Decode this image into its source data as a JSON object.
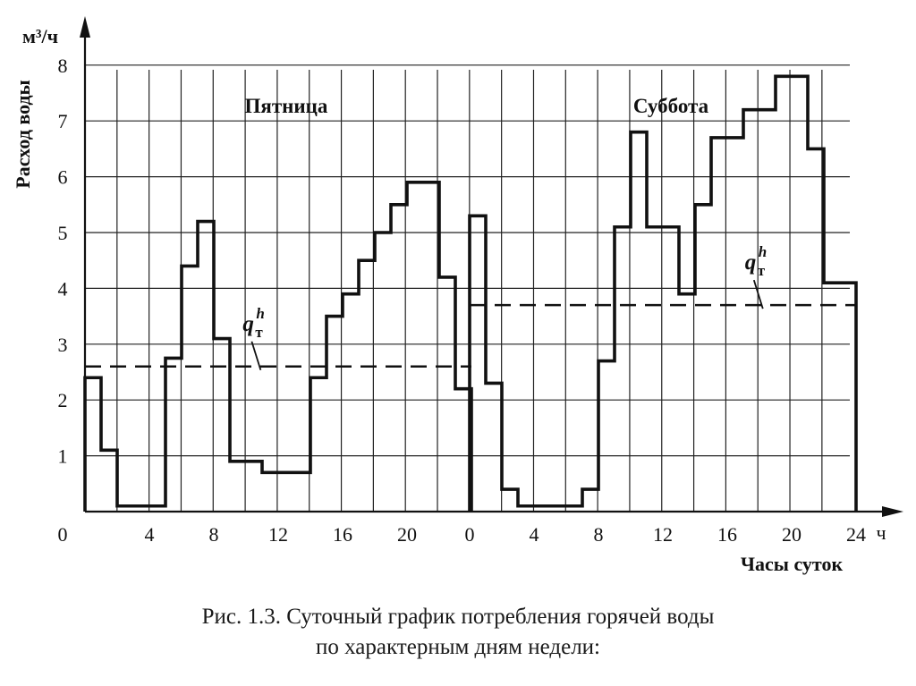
{
  "chart_data": {
    "type": "line",
    "step": true,
    "y_unit": "м³/ч",
    "x_unit": "ч",
    "ylabel": "Расход воды",
    "xlabel": "Часы суток",
    "ylim": [
      0,
      8
    ],
    "y_ticks": [
      "1",
      "2",
      "3",
      "4",
      "5",
      "6",
      "7",
      "8"
    ],
    "origin_label": "0",
    "grid": true,
    "panels": [
      {
        "label": "Пятница",
        "x_ticks": [
          "4",
          "8",
          "12",
          "16",
          "20"
        ],
        "hours": [
          0,
          1,
          2,
          3,
          4,
          5,
          6,
          7,
          8,
          9,
          10,
          11,
          12,
          13,
          14,
          15,
          16,
          17,
          18,
          19,
          20,
          21,
          22,
          23
        ],
        "values": [
          2.4,
          1.1,
          0.1,
          0.1,
          0.1,
          2.75,
          4.4,
          5.2,
          3.1,
          0.9,
          0.9,
          0.7,
          0.7,
          0.7,
          2.4,
          3.5,
          3.9,
          4.5,
          5.0,
          5.5,
          5.9,
          5.9,
          4.2,
          2.2
        ],
        "qh_label": "q",
        "qh_value": 2.6
      },
      {
        "label": "Суббота",
        "x_ticks": [
          "0",
          "4",
          "8",
          "12",
          "16",
          "20",
          "24"
        ],
        "hours": [
          0,
          1,
          2,
          3,
          4,
          5,
          6,
          7,
          8,
          9,
          10,
          11,
          12,
          13,
          14,
          15,
          16,
          17,
          18,
          19,
          20,
          21,
          22,
          23
        ],
        "values": [
          5.3,
          2.3,
          0.4,
          0.1,
          0.1,
          0.1,
          0.1,
          0.4,
          2.7,
          5.1,
          6.8,
          5.1,
          5.1,
          3.9,
          5.5,
          6.7,
          6.7,
          7.2,
          7.2,
          7.8,
          7.8,
          6.5,
          4.1,
          4.1
        ],
        "qh_label": "q",
        "qh_value": 3.7
      }
    ],
    "qh_sub": "т",
    "qh_sup": "h"
  },
  "caption": {
    "line1": "Рис. 1.3. Суточный график потребления горячей воды",
    "line2": "по характерным дням недели:"
  }
}
